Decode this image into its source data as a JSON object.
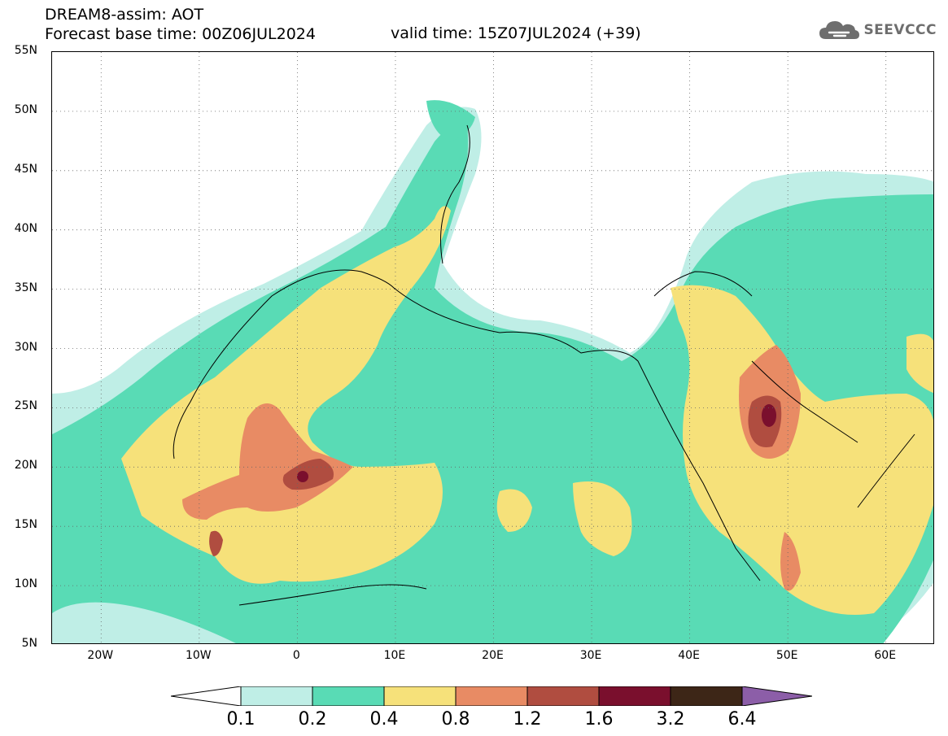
{
  "title": {
    "line1": "DREAM8-assim: AOT",
    "line2": "Forecast base time: 00Z06JUL2024",
    "valid": "valid time: 15Z07JUL2024 (+39)"
  },
  "logo": {
    "text": "SEEVCCC",
    "icon": "cloud-icon",
    "color": "#6e6e6e"
  },
  "map": {
    "lat_labels": [
      "55N",
      "50N",
      "45N",
      "40N",
      "35N",
      "30N",
      "25N",
      "20N",
      "15N",
      "10N",
      "5N"
    ],
    "lon_labels": [
      "20W",
      "10W",
      "0",
      "10E",
      "20E",
      "30E",
      "40E",
      "50E",
      "60E"
    ],
    "lat_range": [
      5,
      55
    ],
    "lon_range": [
      -25,
      65
    ],
    "grid": "dotted"
  },
  "colorbar": {
    "labels": [
      "0.1",
      "0.2",
      "0.4",
      "0.8",
      "1.2",
      "1.6",
      "3.2",
      "6.4"
    ],
    "colors": [
      "#ffffff",
      "#bfeee6",
      "#59dbb5",
      "#f6e17a",
      "#e88b64",
      "#b04d40",
      "#7a0f2d",
      "#3d2617",
      "#8c5ea8"
    ]
  },
  "chart_data": {
    "type": "heatmap",
    "variable": "AOT",
    "levels": [
      0.1,
      0.2,
      0.4,
      0.8,
      1.2,
      1.6,
      3.2,
      6.4
    ],
    "maxima": [
      {
        "lat": 19,
        "lon": 1,
        "class": "1.6-3.2"
      },
      {
        "lat": 24.5,
        "lon": 48.5,
        "class": "1.6-3.2"
      },
      {
        "lat": 13.5,
        "lon": -7.5,
        "class": "1.2-1.6"
      },
      {
        "lat": 10.5,
        "lon": 51,
        "class": "1.2-1.6"
      }
    ]
  }
}
